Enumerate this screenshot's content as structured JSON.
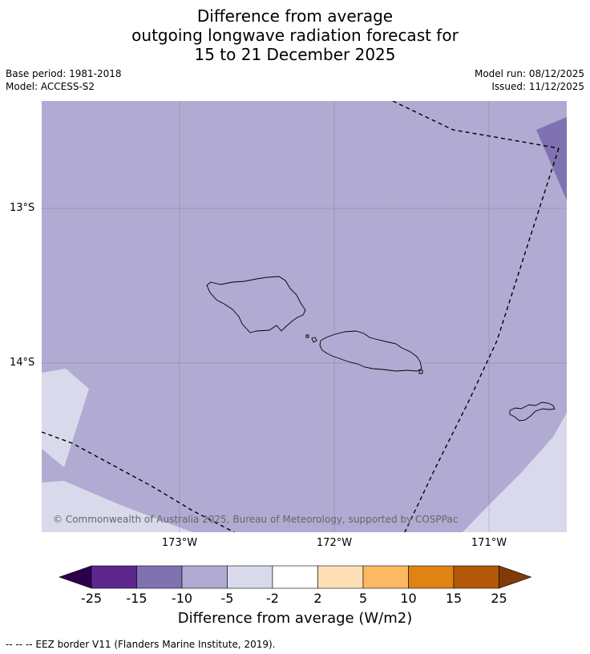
{
  "header": {
    "title_line1": "Difference from average",
    "title_line2": "outgoing longwave radiation forecast for",
    "title_line3": "15 to 21 December 2025",
    "base_period": "Base period: 1981-2018",
    "model": "Model: ACCESS-S2",
    "model_run": "Model run: 08/12/2025",
    "issued": "Issued: 11/12/2025"
  },
  "map": {
    "lat_labels": [
      "13°S",
      "14°S"
    ],
    "lon_labels": [
      "173°W",
      "172°W",
      "171°W"
    ],
    "copyright": "© Commonwealth of Australia 2025, Bureau of Meteorology, supported by COSPPac",
    "colors": {
      "base_fill": "#b1aad3",
      "light_fill": "#d9d9ec",
      "dark_fill": "#8072b0",
      "grid": "#666677",
      "eez": "#000000"
    }
  },
  "colorbar": {
    "ticks": [
      "-25",
      "-15",
      "-10",
      "-5",
      "-2",
      "2",
      "5",
      "10",
      "15",
      "25"
    ],
    "colors": [
      "#5b278f",
      "#8072b0",
      "#b1aad3",
      "#d9d9ec",
      "#ffffff",
      "#fee0b6",
      "#fdb863",
      "#e08214",
      "#b35806"
    ],
    "under_color": "#2d004b",
    "over_color": "#7f3b08",
    "label": "Difference from average (W/m2)"
  },
  "footnote": "--  --  -- EEZ border V11 (Flanders Marine Institute, 2019)."
}
